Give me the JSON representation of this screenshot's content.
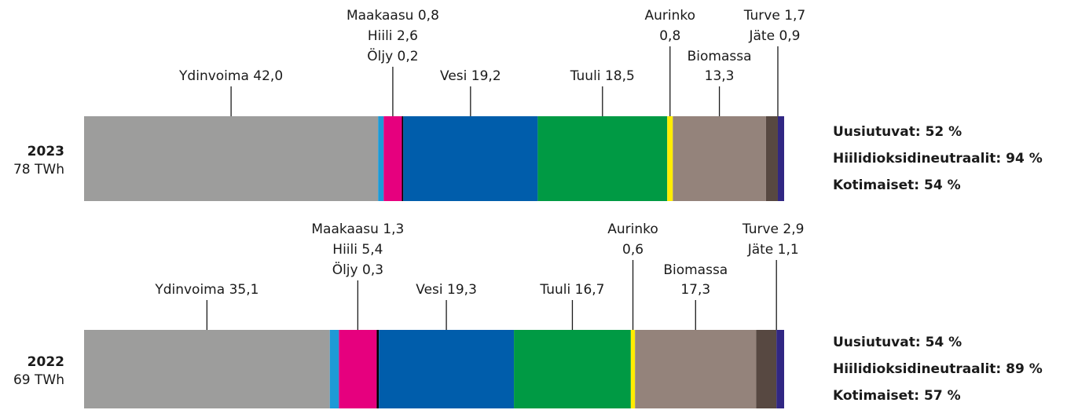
{
  "chart_data": {
    "type": "bar",
    "orientation": "horizontal",
    "stacked": true,
    "categories": [
      "2023",
      "2022"
    ],
    "category_totals": [
      "78 TWh",
      "69 TWh"
    ],
    "annotations": [
      [
        "Uusiutuvat: 52 %",
        "Hiilidioksidineutraalit: 94 %",
        "Kotimaiset: 54 %"
      ],
      [
        "Uusiutuvat: 54 %",
        "Hiilidioksidineutraalit: 89 %",
        "Kotimaiset: 57 %"
      ]
    ],
    "xlim": [
      0,
      100
    ],
    "series": [
      {
        "name": "Ydinvoima",
        "color": "#9d9d9c",
        "values": [
          42.0,
          35.1
        ],
        "value_labels": [
          "42,0",
          "35,1"
        ]
      },
      {
        "name": "Maakaasu",
        "color": "#1e9ad6",
        "values": [
          0.8,
          1.3
        ],
        "value_labels": [
          "0,8",
          "1,3"
        ]
      },
      {
        "name": "Hiili",
        "color": "#e6007e",
        "values": [
          2.6,
          5.4
        ],
        "value_labels": [
          "2,6",
          "5,4"
        ]
      },
      {
        "name": "Öljy",
        "color": "#000000",
        "values": [
          0.2,
          0.3
        ],
        "value_labels": [
          "0,2",
          "0,3"
        ]
      },
      {
        "name": "Vesi",
        "color": "#005dab",
        "values": [
          19.2,
          19.3
        ],
        "value_labels": [
          "19,2",
          "19,3"
        ]
      },
      {
        "name": "Tuuli",
        "color": "#009a44",
        "values": [
          18.5,
          16.7
        ],
        "value_labels": [
          "18,5",
          "16,7"
        ]
      },
      {
        "name": "Aurinko",
        "color": "#ffed00",
        "values": [
          0.8,
          0.6
        ],
        "value_labels": [
          "0,8",
          "0,6"
        ]
      },
      {
        "name": "Biomassa",
        "color": "#94837b",
        "values": [
          13.3,
          17.3
        ],
        "value_labels": [
          "13,3",
          "17,3"
        ]
      },
      {
        "name": "Turve",
        "color": "#574841",
        "values": [
          1.7,
          2.9
        ],
        "value_labels": [
          "1,7",
          "2,9"
        ]
      },
      {
        "name": "Jäte",
        "color": "#312783",
        "values": [
          0.9,
          1.1
        ],
        "value_labels": [
          "0,9",
          "1,1"
        ]
      }
    ]
  }
}
